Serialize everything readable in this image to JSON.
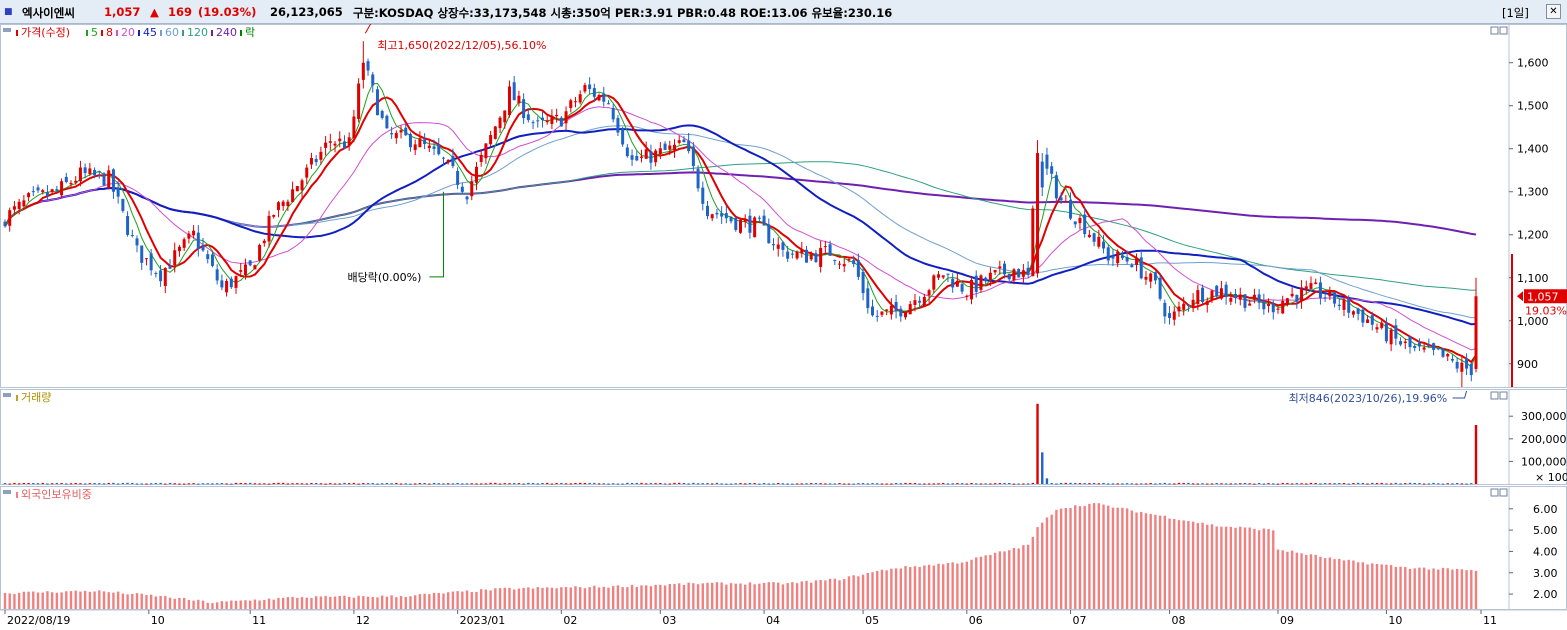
{
  "header": {
    "stock_name": "엑사이엔씨",
    "price": "1,057",
    "change_arrow": "▲",
    "change": "169",
    "change_pct": "(19.03%)",
    "volume": "26,123,065",
    "info": "구분:KOSDAQ 상장수:33,173,548 시총:350억 PER:3.91 PBR:0.48 ROE:13.06 유보율:230.16",
    "period": "[1일]"
  },
  "colors": {
    "up": "#e00000",
    "down": "#1e64c8",
    "ma5": "#20a020",
    "ma8": "#e00000",
    "ma20": "#d050d0",
    "ma45": "#1020c0",
    "ma60": "#70a0d0",
    "ma120": "#30a080",
    "ma240": "#7020b0",
    "foreign": "#f08080",
    "exdiv": "#008000",
    "panel_bg": "#ffffff",
    "topbar_bg": "#e4ecf6"
  },
  "panels": {
    "price": {
      "legend": [
        {
          "text": "가격(수정)",
          "color": "#e00000"
        },
        {
          "text": "5",
          "color": "#20a020"
        },
        {
          "text": "8",
          "color": "#e00000"
        },
        {
          "text": "20",
          "color": "#d050d0"
        },
        {
          "text": "45",
          "color": "#1020c0"
        },
        {
          "text": "60",
          "color": "#70a0d0"
        },
        {
          "text": "120",
          "color": "#30a080"
        },
        {
          "text": "240",
          "color": "#7020b0"
        },
        {
          "text": "락",
          "color": "#008000"
        }
      ],
      "max_annotation": "최고1,650(2022/12/05),56.10%",
      "min_annotation": "최저846(2023/10/26),19.96%",
      "exdiv_annotation": "배당락(0.00%)",
      "current_price_label": "1,057",
      "current_pct_label": "19.03%"
    },
    "volume": {
      "legend": "거래량",
      "unit_label": "× 100"
    },
    "foreign": {
      "legend": "외국인보유비중"
    }
  },
  "chart_data": [
    {
      "type": "candlestick",
      "title": "",
      "x_range": [
        "2022/08/19",
        "2023/11/01"
      ],
      "y_ticks": [
        900,
        1000,
        1100,
        1200,
        1300,
        1400,
        1500,
        1600
      ],
      "ylim": [
        846,
        1690
      ],
      "price_anchors": [
        [
          "2022/08/19",
          1240
        ],
        [
          "2022/08/26",
          1280
        ],
        [
          "2022/09/05",
          1300
        ],
        [
          "2022/09/12",
          1340
        ],
        [
          "2022/09/20",
          1330
        ],
        [
          "2022/09/28",
          1160
        ],
        [
          "2022/10/05",
          1110
        ],
        [
          "2022/10/14",
          1200
        ],
        [
          "2022/10/24",
          1075
        ],
        [
          "2022/11/01",
          1120
        ],
        [
          "2022/11/08",
          1250
        ],
        [
          "2022/11/16",
          1330
        ],
        [
          "2022/11/24",
          1420
        ],
        [
          "2022/11/30",
          1410
        ],
        [
          "2022/12/05",
          1600
        ],
        [
          "2022/12/12",
          1430
        ],
        [
          "2022/12/20",
          1420
        ],
        [
          "2022/12/28",
          1370
        ],
        [
          "2023/01/04",
          1300
        ],
        [
          "2023/01/10",
          1400
        ],
        [
          "2023/01/17",
          1530
        ],
        [
          "2023/01/25",
          1450
        ],
        [
          "2023/02/01",
          1470
        ],
        [
          "2023/02/08",
          1540
        ],
        [
          "2023/02/15",
          1510
        ],
        [
          "2023/02/22",
          1370
        ],
        [
          "2023/03/02",
          1390
        ],
        [
          "2023/03/09",
          1410
        ],
        [
          "2023/03/16",
          1260
        ],
        [
          "2023/03/24",
          1230
        ],
        [
          "2023/03/31",
          1220
        ],
        [
          "2023/04/07",
          1160
        ],
        [
          "2023/04/14",
          1150
        ],
        [
          "2023/04/21",
          1160
        ],
        [
          "2023/04/28",
          1130
        ],
        [
          "2023/05/04",
          1010
        ],
        [
          "2023/05/11",
          1020
        ],
        [
          "2023/05/18",
          1060
        ],
        [
          "2023/05/25",
          1110
        ],
        [
          "2023/06/01",
          1070
        ],
        [
          "2023/06/08",
          1100
        ],
        [
          "2023/06/15",
          1120
        ],
        [
          "2023/06/20",
          1100
        ],
        [
          "2023/06/22",
          1390
        ],
        [
          "2023/06/29",
          1280
        ],
        [
          "2023/07/06",
          1220
        ],
        [
          "2023/07/13",
          1150
        ],
        [
          "2023/07/20",
          1140
        ],
        [
          "2023/07/27",
          1080
        ],
        [
          "2023/08/01",
          1000
        ],
        [
          "2023/08/08",
          1060
        ],
        [
          "2023/08/16",
          1070
        ],
        [
          "2023/08/23",
          1050
        ],
        [
          "2023/08/30",
          1030
        ],
        [
          "2023/09/06",
          1060
        ],
        [
          "2023/09/13",
          1070
        ],
        [
          "2023/09/20",
          1040
        ],
        [
          "2023/09/27",
          1010
        ],
        [
          "2023/10/05",
          960
        ],
        [
          "2023/10/12",
          930
        ],
        [
          "2023/10/19",
          920
        ],
        [
          "2023/10/26",
          890
        ],
        [
          "2023/10/30",
          888
        ],
        [
          "2023/10/31",
          1057
        ]
      ],
      "max_point": {
        "date": "2022/12/05",
        "value": 1650
      },
      "min_point": {
        "date": "2023/10/26",
        "value": 846
      },
      "last": {
        "date": "2023/10/31",
        "close": 1057,
        "change": 169,
        "change_pct": 19.03
      }
    },
    {
      "type": "bar",
      "title": "",
      "y_ticks": [
        100000,
        200000,
        300000
      ],
      "ylim": [
        0,
        385000
      ],
      "spikes": [
        {
          "date": "2023/06/22",
          "value": 355000
        },
        {
          "date": "2023/06/23",
          "value": 140000
        },
        {
          "date": "2023/06/26",
          "value": 25000
        },
        {
          "date": "2023/10/31",
          "value": 261231
        }
      ],
      "baseline": 3500
    },
    {
      "type": "bar",
      "title": "",
      "y_ticks": [
        2.0,
        3.0,
        4.0,
        5.0,
        6.0
      ],
      "ylim": [
        1.3,
        6.6
      ],
      "anchors": [
        [
          "2022/08/19",
          2.05
        ],
        [
          "2022/09/15",
          2.15
        ],
        [
          "2022/10/05",
          1.9
        ],
        [
          "2022/10/20",
          1.6
        ],
        [
          "2022/11/15",
          1.85
        ],
        [
          "2022/12/15",
          1.9
        ],
        [
          "2023/01/15",
          2.25
        ],
        [
          "2023/02/15",
          2.35
        ],
        [
          "2023/03/15",
          2.5
        ],
        [
          "2023/04/10",
          2.5
        ],
        [
          "2023/04/25",
          2.7
        ],
        [
          "2023/05/10",
          3.2
        ],
        [
          "2023/05/31",
          3.5
        ],
        [
          "2023/06/20",
          4.3
        ],
        [
          "2023/06/22",
          5.1
        ],
        [
          "2023/06/28",
          6.0
        ],
        [
          "2023/07/10",
          6.25
        ],
        [
          "2023/07/25",
          5.8
        ],
        [
          "2023/08/15",
          5.2
        ],
        [
          "2023/08/31",
          5.0
        ],
        [
          "2023/09/01",
          4.1
        ],
        [
          "2023/09/20",
          3.6
        ],
        [
          "2023/10/10",
          3.25
        ],
        [
          "2023/10/31",
          3.1
        ]
      ]
    }
  ],
  "x_axis": {
    "labels": [
      {
        "text": "2022/08/19",
        "date": "2022/08/19"
      },
      {
        "text": "10",
        "date": "2022/10/01"
      },
      {
        "text": "11",
        "date": "2022/11/01"
      },
      {
        "text": "12",
        "date": "2022/12/01"
      },
      {
        "text": "2023/01",
        "date": "2023/01/02"
      },
      {
        "text": "02",
        "date": "2023/02/01"
      },
      {
        "text": "03",
        "date": "2023/03/02"
      },
      {
        "text": "04",
        "date": "2023/04/03"
      },
      {
        "text": "05",
        "date": "2023/05/02"
      },
      {
        "text": "06",
        "date": "2023/06/01"
      },
      {
        "text": "07",
        "date": "2023/07/03"
      },
      {
        "text": "08",
        "date": "2023/08/01"
      },
      {
        "text": "09",
        "date": "2023/09/01"
      },
      {
        "text": "10",
        "date": "2023/10/04"
      },
      {
        "text": "11",
        "date": "2023/11/01"
      }
    ]
  }
}
